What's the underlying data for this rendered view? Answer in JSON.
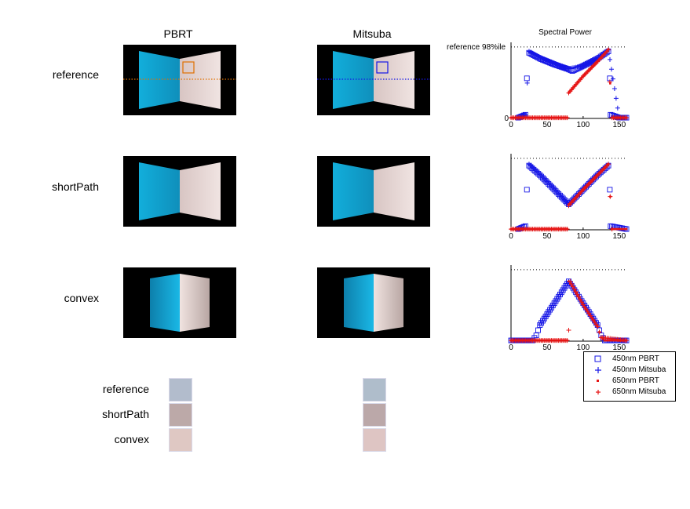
{
  "columns": [
    "PBRT",
    "Mitsuba"
  ],
  "plot_title": "Spectral Power",
  "plot_ref_label": "reference 98%ile",
  "rows": [
    "reference",
    "shortPath",
    "convex"
  ],
  "swatch_rows": [
    "reference",
    "shortPath",
    "convex"
  ],
  "swatch_colors": {
    "pbrt": [
      "#b2bccc",
      "#bca9a8",
      "#dfc8c3"
    ],
    "mitsuba": [
      "#afbdcb",
      "#bba8a9",
      "#dec5c3"
    ]
  },
  "colors": {
    "blue": "#1515e6",
    "red": "#e61515",
    "orange": "#e07000",
    "cyan_wall": "#12a9d6",
    "pink_wall": "#e8d6d2"
  },
  "chart_data": [
    {
      "type": "scatter",
      "title": "Spectral Power",
      "annotation": "reference 98%ile",
      "xlim": [
        0,
        160
      ],
      "ylim": [
        0,
        1
      ],
      "xticks": [
        0,
        50,
        100,
        150
      ],
      "yticks": [
        0
      ],
      "reference_line": 0.98,
      "series": [
        {
          "name": "450nm PBRT",
          "marker": "square",
          "points": [
            [
              10,
              0.01
            ],
            [
              20,
              0.05
            ],
            [
              22,
              0.55
            ],
            [
              25,
              0.9
            ],
            [
              40,
              0.82
            ],
            [
              60,
              0.74
            ],
            [
              78,
              0.68
            ],
            [
              85,
              0.65
            ],
            [
              100,
              0.72
            ],
            [
              120,
              0.82
            ],
            [
              135,
              0.92
            ],
            [
              137,
              0.55
            ],
            [
              138,
              0.05
            ],
            [
              150,
              0.01
            ],
            [
              160,
              0.01
            ]
          ]
        },
        {
          "name": "450nm Mitsuba",
          "marker": "plus",
          "points": [
            [
              10,
              0.01
            ],
            [
              20,
              0.05
            ],
            [
              25,
              0.92
            ],
            [
              40,
              0.84
            ],
            [
              60,
              0.76
            ],
            [
              78,
              0.68
            ],
            [
              100,
              0.72
            ],
            [
              120,
              0.82
            ],
            [
              135,
              0.94
            ],
            [
              150,
              0.01
            ],
            [
              160,
              0.01
            ]
          ]
        },
        {
          "name": "650nm PBRT",
          "marker": "dot",
          "points": [
            [
              0,
              0.01
            ],
            [
              40,
              0.01
            ],
            [
              78,
              0.01
            ],
            [
              80,
              0.35
            ],
            [
              100,
              0.58
            ],
            [
              120,
              0.78
            ],
            [
              135,
              0.95
            ],
            [
              140,
              0.01
            ],
            [
              160,
              0.01
            ]
          ]
        },
        {
          "name": "650nm Mitsuba",
          "marker": "plus",
          "points": [
            [
              0,
              0.01
            ],
            [
              40,
              0.01
            ],
            [
              78,
              0.01
            ],
            [
              80,
              0.35
            ],
            [
              100,
              0.58
            ],
            [
              120,
              0.78
            ],
            [
              135,
              0.94
            ],
            [
              137,
              0.5
            ],
            [
              140,
              0.01
            ],
            [
              160,
              0.01
            ]
          ]
        }
      ]
    },
    {
      "type": "scatter",
      "xlim": [
        0,
        160
      ],
      "ylim": [
        0,
        1
      ],
      "xticks": [
        0,
        50,
        100,
        150
      ],
      "reference_line": 0.98,
      "series": [
        {
          "name": "450nm PBRT",
          "marker": "square",
          "points": [
            [
              10,
              0.01
            ],
            [
              20,
              0.05
            ],
            [
              22,
              0.55
            ],
            [
              25,
              0.88
            ],
            [
              40,
              0.75
            ],
            [
              60,
              0.55
            ],
            [
              80,
              0.35
            ],
            [
              100,
              0.55
            ],
            [
              120,
              0.75
            ],
            [
              135,
              0.88
            ],
            [
              137,
              0.55
            ],
            [
              138,
              0.05
            ],
            [
              160,
              0.01
            ]
          ]
        },
        {
          "name": "450nm Mitsuba",
          "marker": "plus",
          "points": [
            [
              25,
              0.9
            ],
            [
              40,
              0.76
            ],
            [
              60,
              0.56
            ],
            [
              80,
              0.35
            ],
            [
              100,
              0.56
            ],
            [
              120,
              0.76
            ],
            [
              135,
              0.9
            ]
          ]
        },
        {
          "name": "650nm PBRT",
          "marker": "dot",
          "points": [
            [
              0,
              0.01
            ],
            [
              40,
              0.01
            ],
            [
              78,
              0.01
            ],
            [
              80,
              0.35
            ],
            [
              100,
              0.55
            ],
            [
              120,
              0.75
            ],
            [
              135,
              0.9
            ],
            [
              140,
              0.01
            ],
            [
              160,
              0.01
            ]
          ]
        },
        {
          "name": "650nm Mitsuba",
          "marker": "plus",
          "points": [
            [
              0,
              0.01
            ],
            [
              78,
              0.01
            ],
            [
              80,
              0.33
            ],
            [
              100,
              0.55
            ],
            [
              120,
              0.75
            ],
            [
              135,
              0.9
            ],
            [
              140,
              0.01
            ]
          ]
        }
      ]
    },
    {
      "type": "scatter",
      "xlim": [
        0,
        160
      ],
      "ylim": [
        0,
        1
      ],
      "xticks": [
        0,
        50,
        100,
        150
      ],
      "reference_line": 0.98,
      "series": [
        {
          "name": "450nm PBRT",
          "marker": "square",
          "points": [
            [
              0,
              0.01
            ],
            [
              30,
              0.01
            ],
            [
              35,
              0.08
            ],
            [
              40,
              0.22
            ],
            [
              60,
              0.52
            ],
            [
              80,
              0.82
            ],
            [
              100,
              0.52
            ],
            [
              120,
              0.22
            ],
            [
              125,
              0.08
            ],
            [
              130,
              0.01
            ],
            [
              160,
              0.01
            ]
          ]
        },
        {
          "name": "450nm Mitsuba",
          "marker": "plus",
          "points": [
            [
              40,
              0.22
            ],
            [
              60,
              0.52
            ],
            [
              80,
              0.82
            ],
            [
              100,
              0.52
            ],
            [
              120,
              0.22
            ]
          ]
        },
        {
          "name": "650nm PBRT",
          "marker": "dot",
          "points": [
            [
              0,
              0.01
            ],
            [
              40,
              0.01
            ],
            [
              78,
              0.01
            ],
            [
              80,
              0.82
            ],
            [
              100,
              0.5
            ],
            [
              120,
              0.2
            ],
            [
              125,
              0.05
            ],
            [
              130,
              0.01
            ],
            [
              160,
              0.01
            ]
          ]
        },
        {
          "name": "650nm Mitsuba",
          "marker": "plus",
          "points": [
            [
              0,
              0.01
            ],
            [
              78,
              0.01
            ],
            [
              80,
              0.15
            ],
            [
              82,
              0.82
            ],
            [
              100,
              0.5
            ],
            [
              120,
              0.2
            ],
            [
              125,
              0.05
            ],
            [
              160,
              0.01
            ]
          ]
        }
      ]
    }
  ],
  "legend": [
    "450nm PBRT",
    "450nm Mitsuba",
    "650nm PBRT",
    "650nm Mitsuba"
  ]
}
